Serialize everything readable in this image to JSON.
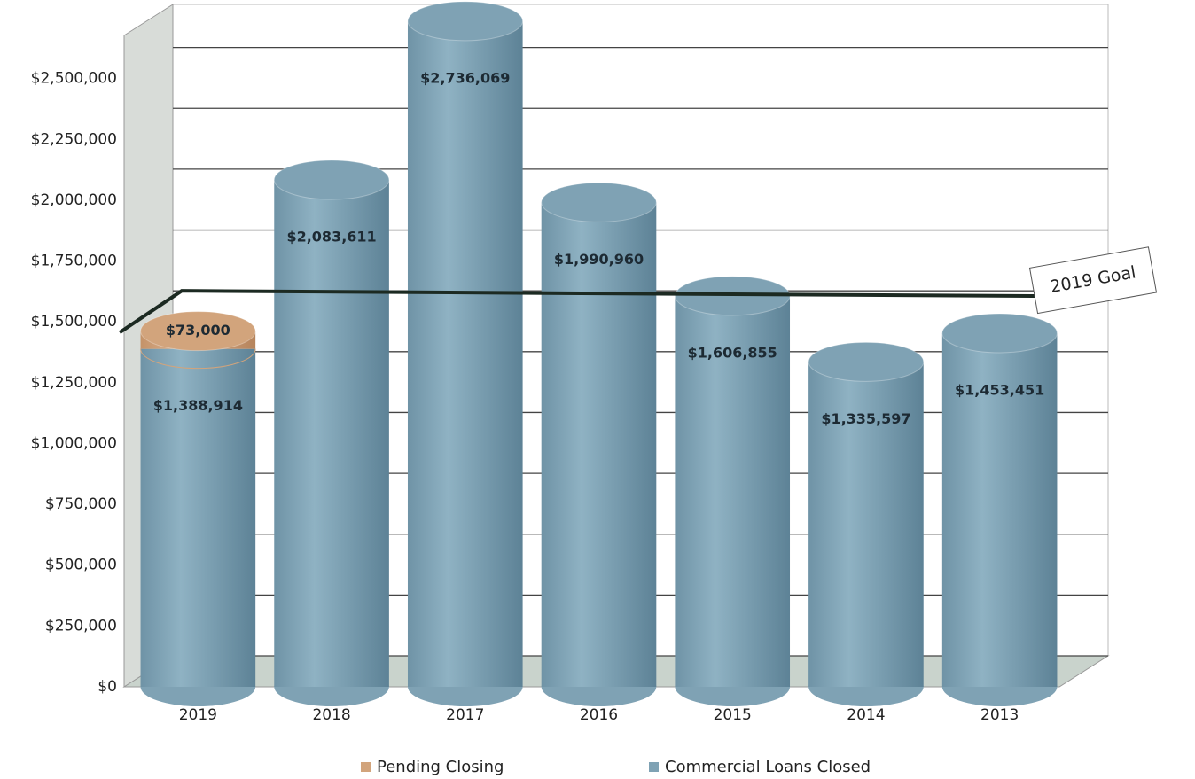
{
  "chart_data": {
    "type": "cylinder-stacked-bar",
    "categories": [
      "2019",
      "2018",
      "2017",
      "2016",
      "2015",
      "2014",
      "2013"
    ],
    "series": [
      {
        "name": "Commercial Loans Closed",
        "color": "#7fa2b4",
        "values": [
          1388914,
          2083611,
          2736069,
          1990960,
          1606855,
          1335597,
          1453451
        ],
        "value_labels": [
          "$1,388,914",
          "$2,083,611",
          "$2,736,069",
          "$1,990,960",
          "$1,606,855",
          "$1,335,597",
          "$1,453,451"
        ]
      },
      {
        "name": "Pending Closing",
        "color": "#d2a47c",
        "values": [
          73000,
          null,
          null,
          null,
          null,
          null,
          null
        ],
        "value_labels": [
          "$73,000",
          null,
          null,
          null,
          null,
          null,
          null
        ]
      }
    ],
    "ylim": [
      0,
      2750000
    ],
    "yticks": [
      {
        "value": 0,
        "label": "$0"
      },
      {
        "value": 250000,
        "label": "$250,000"
      },
      {
        "value": 500000,
        "label": "$500,000"
      },
      {
        "value": 750000,
        "label": "$750,000"
      },
      {
        "value": 1000000,
        "label": "$1,000,000"
      },
      {
        "value": 1250000,
        "label": "$1,250,000"
      },
      {
        "value": 1500000,
        "label": "$1,500,000"
      },
      {
        "value": 1750000,
        "label": "$1,750,000"
      },
      {
        "value": 2000000,
        "label": "$2,000,000"
      },
      {
        "value": 2250000,
        "label": "$2,250,000"
      },
      {
        "value": 2500000,
        "label": "$2,500,000"
      }
    ],
    "grid": true,
    "goal": {
      "value": 1500000,
      "label": "2019 Goal"
    },
    "legend": "bottom"
  }
}
